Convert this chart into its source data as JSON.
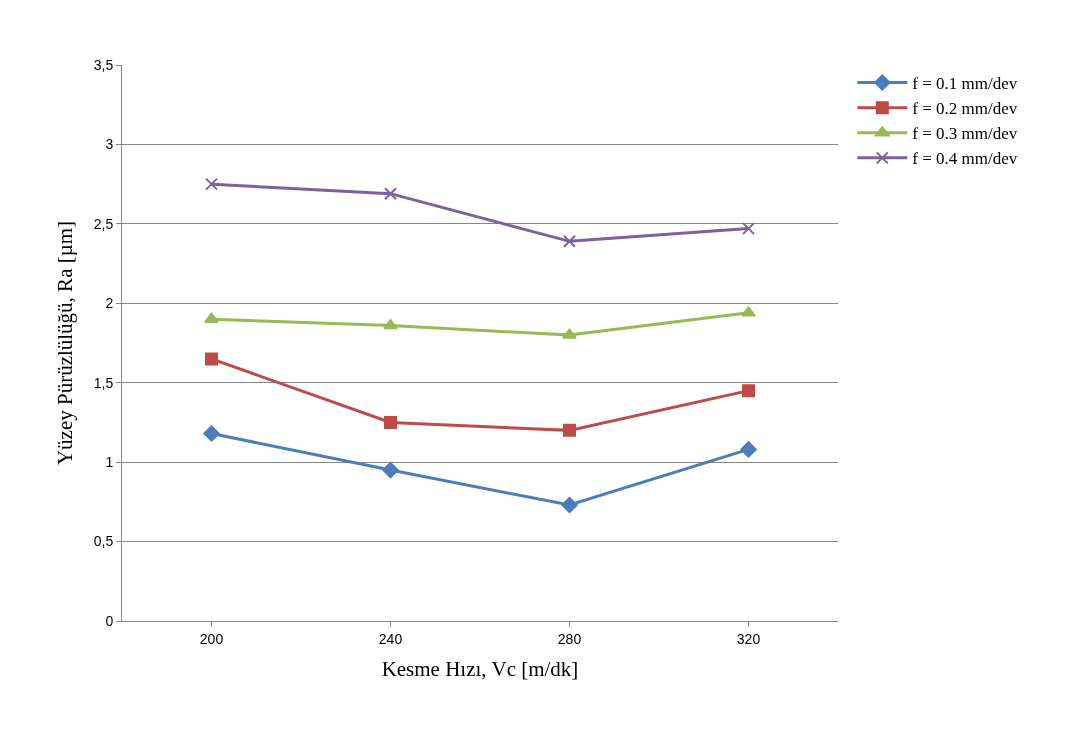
{
  "chart_data": {
    "type": "line",
    "xlabel": "Kesme Hızı, Vc [m/dk]",
    "ylabel": "Yüzey Pürüzlülüğü, Ra [µm]",
    "categories": [
      "200",
      "240",
      "280",
      "320"
    ],
    "series": [
      {
        "name": "f = 0.1 mm/dev",
        "color": "#4a7ebb",
        "marker": "diamond",
        "values": [
          1.18,
          0.95,
          0.73,
          1.08
        ]
      },
      {
        "name": "f = 0.2 mm/dev",
        "color": "#be4b48",
        "marker": "square",
        "values": [
          1.65,
          1.25,
          1.2,
          1.45
        ]
      },
      {
        "name": "f = 0.3 mm/dev",
        "color": "#98b954",
        "marker": "triangle",
        "values": [
          1.9,
          1.86,
          1.8,
          1.94
        ]
      },
      {
        "name": "f = 0.4 mm/dev",
        "color": "#7d60a0",
        "marker": "cross",
        "values": [
          2.75,
          2.69,
          2.39,
          2.47
        ]
      }
    ],
    "ylim": [
      0,
      3.5
    ],
    "yticks": [
      0,
      {
        "value": 0.5,
        "label": "0,5"
      },
      1,
      {
        "value": 1.5,
        "label": "1,5"
      },
      2,
      {
        "value": 2.5,
        "label": "2,5"
      },
      3,
      {
        "value": 3.5,
        "label": "3,5"
      }
    ],
    "grid": "y",
    "legend": "top right",
    "line_style": "solid"
  }
}
